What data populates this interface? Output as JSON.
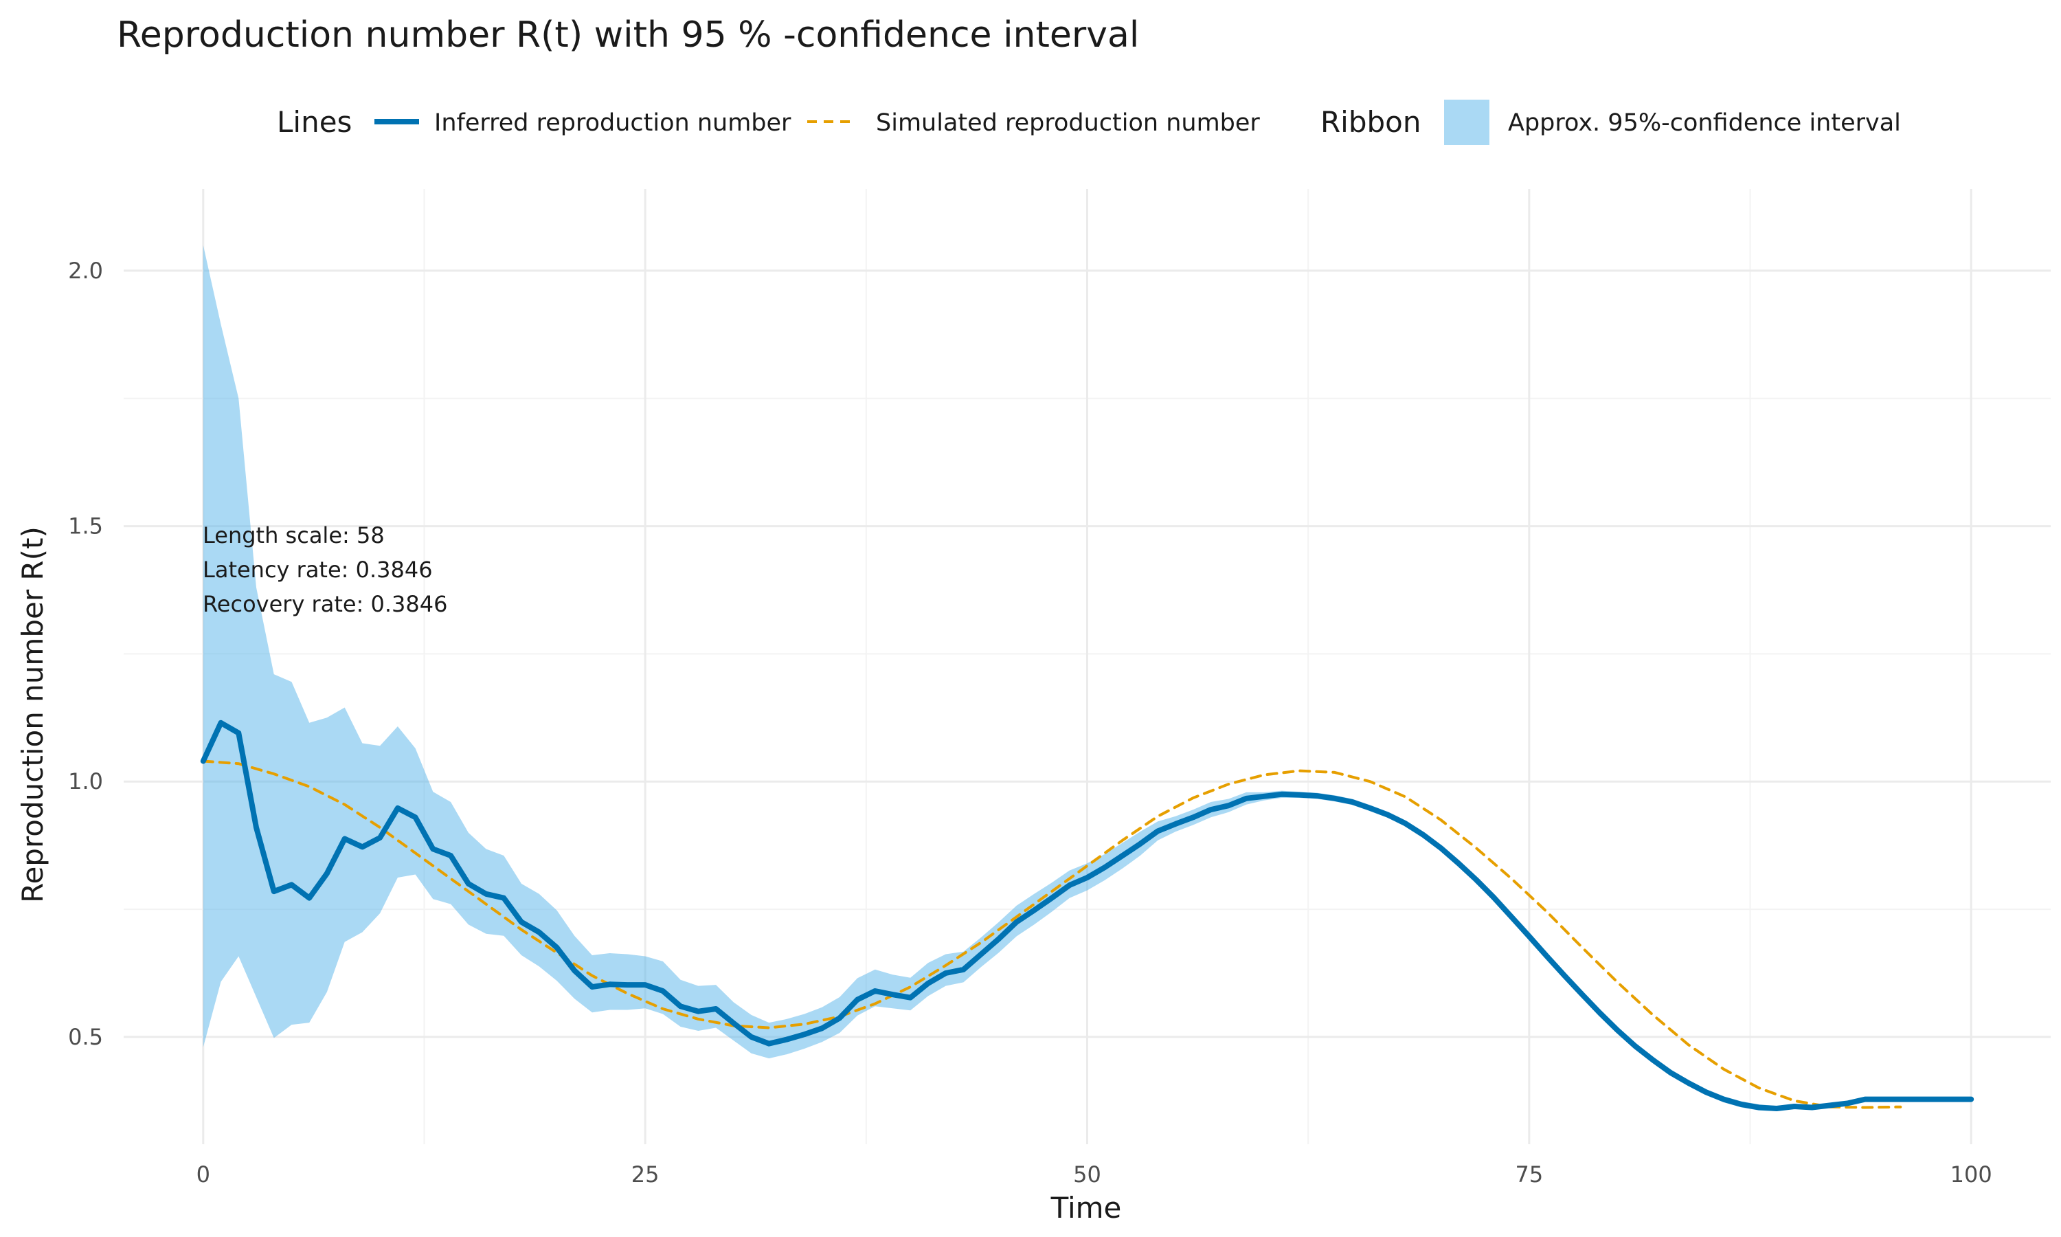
{
  "chart_data": {
    "type": "line",
    "title": "Reproduction number R(t) with 95 % -confidence interval",
    "xlabel": "Time",
    "ylabel": "Reproduction number R(t)",
    "xlim": [
      -4.5,
      104.5
    ],
    "ylim": [
      0.29,
      2.16
    ],
    "x_ticks": [
      0,
      25,
      50,
      75,
      100
    ],
    "y_ticks": [
      0.5,
      1.0,
      1.5,
      2.0
    ],
    "x_tick_labels": [
      "0",
      "25",
      "50",
      "75",
      "100"
    ],
    "y_tick_labels": [
      "0.5",
      "1.0",
      "1.5",
      "2.0"
    ],
    "grid": true,
    "legend_placement": "top",
    "legend": {
      "lines_title": "Lines",
      "ribbon_title": "Ribbon",
      "inferred_label": "Inferred reproduction number",
      "simulated_label": "Simulated reproduction number",
      "ribbon_label": "Approx. 95%-confidence interval"
    },
    "annotations": [
      "Length scale: 58",
      "Latency rate: 0.3846",
      "Recovery rate: 0.3846"
    ],
    "colors": {
      "inferred": "#0072b2",
      "simulated": "#e69f00",
      "ribbon": "#56b4e9"
    },
    "series": [
      {
        "name": "Inferred reproduction number",
        "style": "solid",
        "x": [
          0,
          1,
          2,
          3,
          4,
          5,
          6,
          7,
          8,
          9,
          10,
          11,
          12,
          13,
          14,
          15,
          16,
          17,
          18,
          19,
          20,
          21,
          22,
          23,
          24,
          25,
          26,
          27,
          28,
          29,
          30,
          31,
          32,
          33,
          34,
          35,
          36,
          37,
          38,
          39,
          40,
          41,
          42,
          43,
          44,
          45,
          46,
          47,
          48,
          49,
          50,
          51,
          52,
          53,
          54,
          55,
          56,
          57,
          58,
          59,
          60,
          61,
          62,
          63,
          64,
          65,
          66,
          67,
          68,
          69,
          70,
          71,
          72,
          73,
          74,
          75,
          76,
          77,
          78,
          79,
          80,
          81,
          82,
          83,
          84,
          85,
          86,
          87,
          88,
          89,
          90,
          91,
          92,
          93,
          94,
          95,
          96,
          97,
          98,
          99,
          100
        ],
        "values": [
          1.04,
          1.115,
          1.095,
          0.91,
          0.785,
          0.798,
          0.772,
          0.82,
          0.888,
          0.872,
          0.89,
          0.948,
          0.93,
          0.868,
          0.855,
          0.8,
          0.78,
          0.772,
          0.725,
          0.705,
          0.675,
          0.63,
          0.598,
          0.603,
          0.602,
          0.602,
          0.59,
          0.56,
          0.55,
          0.555,
          0.527,
          0.5,
          0.487,
          0.495,
          0.505,
          0.517,
          0.537,
          0.573,
          0.59,
          0.583,
          0.577,
          0.605,
          0.625,
          0.632,
          0.662,
          0.692,
          0.725,
          0.748,
          0.772,
          0.797,
          0.812,
          0.832,
          0.855,
          0.878,
          0.903,
          0.917,
          0.93,
          0.945,
          0.953,
          0.967,
          0.971,
          0.975,
          0.974,
          0.972,
          0.967,
          0.96,
          0.948,
          0.935,
          0.918,
          0.896,
          0.87,
          0.84,
          0.808,
          0.773,
          0.735,
          0.697,
          0.658,
          0.62,
          0.583,
          0.547,
          0.513,
          0.482,
          0.455,
          0.43,
          0.41,
          0.392,
          0.378,
          0.368,
          0.362,
          0.36,
          0.364,
          0.362,
          0.366,
          0.37,
          0.378,
          0.378,
          0.378,
          0.378,
          0.378,
          0.378,
          0.378
        ]
      },
      {
        "name": "Simulated reproduction number",
        "style": "dashed",
        "x": [
          0,
          2,
          4,
          6,
          8,
          10,
          12,
          14,
          16,
          18,
          20,
          22,
          24,
          26,
          28,
          30,
          32,
          34,
          36,
          38,
          40,
          42,
          44,
          46,
          48,
          50,
          52,
          54,
          56,
          58,
          60,
          62,
          64,
          66,
          68,
          70,
          72,
          74,
          76,
          78,
          80,
          82,
          84,
          86,
          88,
          90,
          92,
          94,
          96
        ],
        "values": [
          1.04,
          1.035,
          1.015,
          0.99,
          0.955,
          0.91,
          0.86,
          0.81,
          0.76,
          0.71,
          0.665,
          0.62,
          0.585,
          0.555,
          0.535,
          0.522,
          0.518,
          0.525,
          0.54,
          0.565,
          0.598,
          0.64,
          0.685,
          0.735,
          0.785,
          0.835,
          0.885,
          0.932,
          0.968,
          0.995,
          1.013,
          1.021,
          1.018,
          1.0,
          0.97,
          0.925,
          0.87,
          0.81,
          0.745,
          0.675,
          0.607,
          0.543,
          0.485,
          0.437,
          0.4,
          0.375,
          0.363,
          0.362,
          0.363
        ]
      }
    ],
    "ribbon": {
      "name": "Approx. 95%-confidence interval",
      "x": [
        0,
        1,
        2,
        3,
        4,
        5,
        6,
        7,
        8,
        9,
        10,
        11,
        12,
        13,
        14,
        15,
        16,
        17,
        18,
        19,
        20,
        21,
        22,
        23,
        24,
        25,
        26,
        27,
        28,
        29,
        30,
        31,
        32,
        33,
        34,
        35,
        36,
        37,
        38,
        39,
        40,
        41,
        42,
        43,
        44,
        45,
        46,
        47,
        48,
        49,
        50,
        51,
        52,
        53,
        54,
        55,
        56,
        57,
        58,
        59,
        60,
        61,
        62,
        63,
        64,
        65,
        66,
        67,
        68,
        69,
        70,
        71,
        72,
        73,
        74,
        75,
        76,
        77,
        78,
        79,
        80,
        81,
        82,
        83,
        84,
        85,
        86,
        87,
        88,
        89,
        90,
        91,
        92,
        93,
        94,
        95,
        96,
        97,
        98,
        99,
        100
      ],
      "lower": [
        0.48,
        0.608,
        0.658,
        0.578,
        0.498,
        0.524,
        0.528,
        0.588,
        0.686,
        0.705,
        0.742,
        0.812,
        0.818,
        0.77,
        0.76,
        0.72,
        0.702,
        0.698,
        0.66,
        0.638,
        0.61,
        0.575,
        0.548,
        0.553,
        0.553,
        0.556,
        0.545,
        0.52,
        0.512,
        0.518,
        0.493,
        0.468,
        0.458,
        0.466,
        0.477,
        0.49,
        0.508,
        0.542,
        0.56,
        0.556,
        0.552,
        0.58,
        0.6,
        0.607,
        0.637,
        0.665,
        0.697,
        0.72,
        0.745,
        0.772,
        0.787,
        0.807,
        0.83,
        0.855,
        0.885,
        0.902,
        0.915,
        0.93,
        0.94,
        0.955,
        0.963,
        0.968,
        0.968,
        0.966,
        0.961,
        0.954,
        0.942,
        0.929,
        0.912,
        0.89,
        0.864,
        0.834,
        0.802,
        0.767,
        0.729,
        0.691,
        0.652,
        0.614,
        0.577,
        0.541,
        0.507,
        0.476,
        0.449,
        0.424,
        0.404,
        0.386,
        0.372,
        0.362,
        0.356,
        0.355,
        0.359,
        0.357,
        0.361,
        0.366,
        0.374,
        0.375,
        0.375,
        0.375,
        0.375,
        0.375,
        0.375
      ],
      "upper": [
        2.05,
        1.895,
        1.75,
        1.38,
        1.21,
        1.195,
        1.115,
        1.125,
        1.145,
        1.075,
        1.07,
        1.108,
        1.065,
        0.98,
        0.96,
        0.9,
        0.868,
        0.855,
        0.8,
        0.78,
        0.748,
        0.698,
        0.66,
        0.664,
        0.662,
        0.658,
        0.648,
        0.612,
        0.6,
        0.602,
        0.568,
        0.543,
        0.528,
        0.535,
        0.545,
        0.558,
        0.578,
        0.615,
        0.632,
        0.622,
        0.616,
        0.645,
        0.662,
        0.667,
        0.695,
        0.725,
        0.757,
        0.78,
        0.802,
        0.826,
        0.84,
        0.858,
        0.88,
        0.902,
        0.922,
        0.932,
        0.945,
        0.96,
        0.966,
        0.979,
        0.979,
        0.982,
        0.98,
        0.978,
        0.973,
        0.966,
        0.954,
        0.941,
        0.924,
        0.902,
        0.876,
        0.846,
        0.814,
        0.779,
        0.741,
        0.703,
        0.664,
        0.626,
        0.589,
        0.553,
        0.519,
        0.488,
        0.461,
        0.436,
        0.416,
        0.398,
        0.384,
        0.374,
        0.368,
        0.365,
        0.369,
        0.367,
        0.371,
        0.374,
        0.382,
        0.381,
        0.381,
        0.381,
        0.381,
        0.381,
        0.381
      ]
    }
  }
}
